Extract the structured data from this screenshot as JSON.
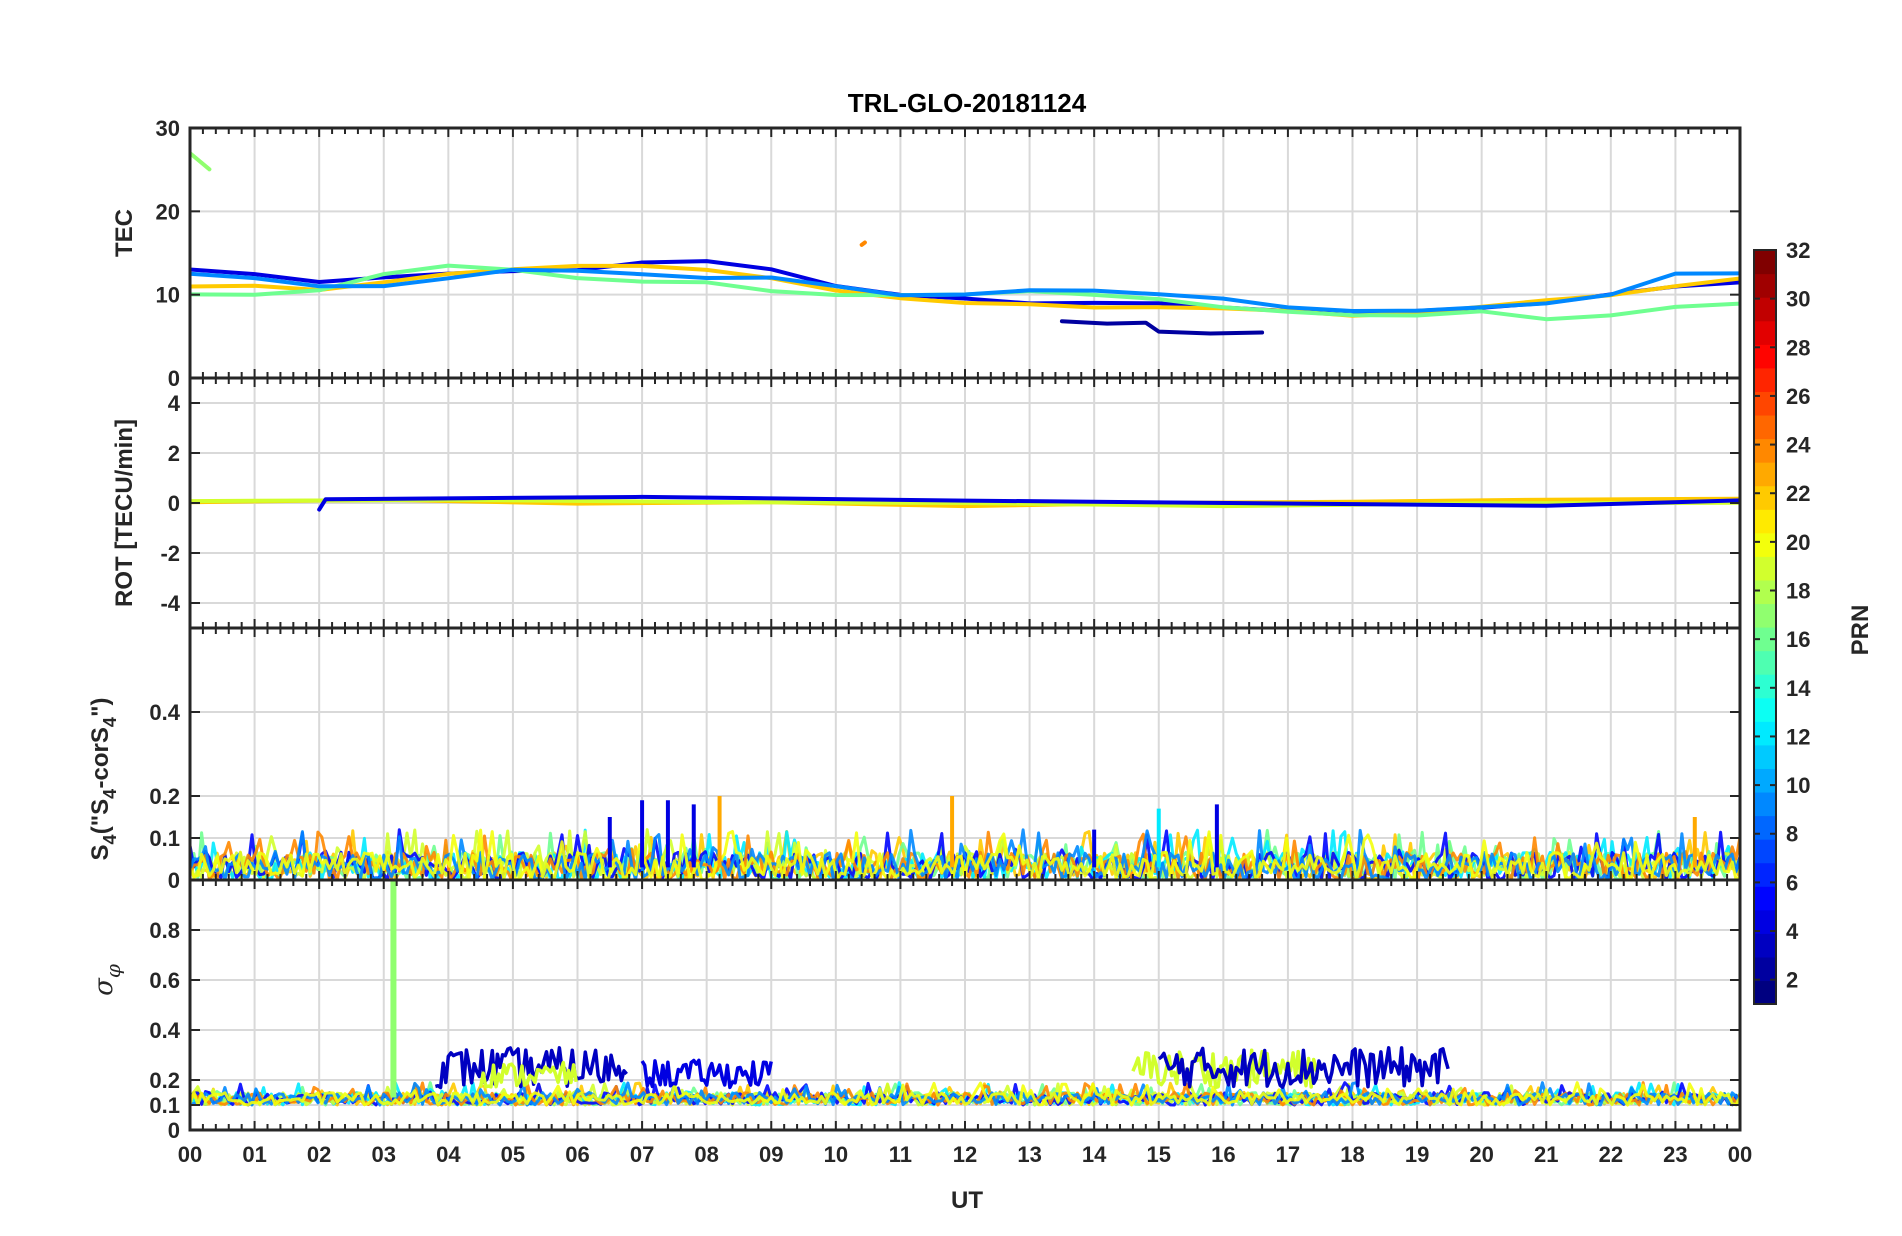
{
  "chart_data": {
    "type": "line",
    "title": "TRL-GLO-20181124",
    "xlabel": "UT",
    "x_range_hours": [
      0,
      24
    ],
    "x_tick_labels": [
      "00",
      "01",
      "02",
      "03",
      "04",
      "05",
      "06",
      "07",
      "08",
      "09",
      "10",
      "11",
      "12",
      "13",
      "14",
      "15",
      "16",
      "17",
      "18",
      "19",
      "20",
      "21",
      "22",
      "23",
      "00"
    ],
    "colorbar": {
      "label": "PRN",
      "range": [
        1,
        32
      ],
      "tick_labels": [
        "2",
        "4",
        "6",
        "8",
        "10",
        "12",
        "14",
        "16",
        "18",
        "20",
        "22",
        "24",
        "26",
        "28",
        "30",
        "32"
      ],
      "colormap": "jet"
    },
    "panels": [
      {
        "id": "tec",
        "ylabel": "TEC",
        "ylim": [
          0,
          30
        ],
        "y_ticks": [
          0,
          10,
          20,
          30
        ],
        "y_tick_labels": [
          "0",
          "10",
          "20",
          "30"
        ],
        "series": [
          {
            "prn": 4,
            "points": [
              [
                0,
                13
              ],
              [
                1,
                12.5
              ],
              [
                2,
                11.5
              ],
              [
                3,
                12
              ],
              [
                4,
                12.5
              ],
              [
                5,
                12.8
              ],
              [
                6,
                13
              ],
              [
                7,
                13.8
              ],
              [
                8,
                14
              ],
              [
                9,
                13
              ],
              [
                10,
                11
              ],
              [
                11,
                10
              ],
              [
                12,
                9.5
              ],
              [
                13,
                9
              ],
              [
                14,
                9
              ],
              [
                15,
                9
              ],
              [
                16,
                8.5
              ],
              [
                17,
                8
              ],
              [
                18,
                7.5
              ],
              [
                19,
                8
              ],
              [
                20,
                8.5
              ],
              [
                21,
                9
              ],
              [
                22,
                10
              ],
              [
                23,
                11
              ],
              [
                24,
                11.5
              ]
            ]
          },
          {
            "prn": 22,
            "points": [
              [
                0,
                11
              ],
              [
                1,
                11
              ],
              [
                2,
                10.5
              ],
              [
                3,
                11.5
              ],
              [
                4,
                12.5
              ],
              [
                5,
                13
              ],
              [
                6,
                13.5
              ],
              [
                7,
                13.5
              ],
              [
                8,
                13
              ],
              [
                9,
                12
              ],
              [
                10,
                10.5
              ],
              [
                11,
                9.5
              ],
              [
                12,
                9
              ],
              [
                13,
                8.8
              ],
              [
                14,
                8.5
              ],
              [
                15,
                8.5
              ],
              [
                16,
                8.3
              ],
              [
                17,
                8
              ],
              [
                18,
                7.5
              ],
              [
                19,
                7.8
              ],
              [
                20,
                8.5
              ],
              [
                21,
                9.3
              ],
              [
                22,
                10
              ],
              [
                23,
                11
              ],
              [
                24,
                12
              ]
            ]
          },
          {
            "prn": 16,
            "points": [
              [
                0,
                10
              ],
              [
                1,
                10
              ],
              [
                2,
                10.5
              ],
              [
                3,
                12.5
              ],
              [
                4,
                13.5
              ],
              [
                5,
                13
              ],
              [
                6,
                12
              ],
              [
                7,
                11.5
              ],
              [
                8,
                11.5
              ],
              [
                9,
                10.5
              ],
              [
                10,
                10
              ],
              [
                11,
                10
              ],
              [
                12,
                10
              ],
              [
                13,
                10.5
              ],
              [
                14,
                10
              ],
              [
                15,
                9.5
              ],
              [
                16,
                8.5
              ],
              [
                17,
                8
              ],
              [
                18,
                7.5
              ],
              [
                19,
                7.5
              ],
              [
                20,
                8
              ],
              [
                21,
                7
              ],
              [
                22,
                7.5
              ],
              [
                23,
                8.5
              ],
              [
                24,
                9
              ]
            ]
          },
          {
            "prn": 9,
            "points": [
              [
                0,
                12.5
              ],
              [
                1,
                12
              ],
              [
                2,
                11
              ],
              [
                3,
                11
              ],
              [
                4,
                12
              ],
              [
                5,
                13
              ],
              [
                6,
                12.8
              ],
              [
                7,
                12.5
              ],
              [
                8,
                12
              ],
              [
                9,
                12
              ],
              [
                10,
                11
              ],
              [
                11,
                10
              ],
              [
                12,
                10
              ],
              [
                13,
                10.5
              ],
              [
                14,
                10.5
              ],
              [
                15,
                10
              ],
              [
                16,
                9.5
              ],
              [
                17,
                8.5
              ],
              [
                18,
                8
              ],
              [
                19,
                8
              ],
              [
                20,
                8.5
              ],
              [
                21,
                9
              ],
              [
                22,
                10
              ],
              [
                23,
                12.5
              ],
              [
                24,
                12.5
              ]
            ]
          },
          {
            "prn": 2,
            "points": [
              [
                13.5,
                6.8
              ],
              [
                14.2,
                6.5
              ],
              [
                14.8,
                6.7
              ],
              [
                15,
                5.5
              ],
              [
                15.8,
                5.4
              ],
              [
                16.6,
                5.5
              ]
            ]
          },
          {
            "prn": 17,
            "points": [
              [
                0,
                27
              ],
              [
                0.3,
                25
              ]
            ]
          },
          {
            "prn": 24,
            "points": [
              [
                10.4,
                16
              ],
              [
                10.45,
                16.2
              ]
            ]
          }
        ]
      },
      {
        "id": "rot",
        "ylabel": "ROT [TECU/min]",
        "ylim": [
          -5,
          5
        ],
        "y_ticks": [
          -4,
          -2,
          0,
          2,
          4
        ],
        "y_tick_labels": [
          "-4",
          "-2",
          "0",
          "2",
          "4"
        ],
        "series": [
          {
            "prn": 22,
            "points": [
              [
                0,
                0.1
              ],
              [
                3,
                0.05
              ],
              [
                6,
                0
              ],
              [
                9,
                0.05
              ],
              [
                12,
                0
              ],
              [
                15,
                0.05
              ],
              [
                18,
                0
              ],
              [
                21,
                0.05
              ],
              [
                24,
                0.1
              ]
            ]
          },
          {
            "prn": 19,
            "points": [
              [
                0,
                -0.05
              ],
              [
                4,
                0.1
              ],
              [
                8,
                -0.05
              ],
              [
                12,
                0.05
              ],
              [
                16,
                0
              ],
              [
                20,
                0.05
              ],
              [
                24,
                0
              ]
            ]
          },
          {
            "prn": 4,
            "points": [
              [
                2,
                -0.3
              ],
              [
                2.1,
                0.1
              ],
              [
                7,
                0.2
              ],
              [
                12,
                0.1
              ],
              [
                21,
                -0.15
              ],
              [
                24,
                0
              ]
            ]
          }
        ]
      },
      {
        "id": "s4",
        "ylabel": "S4 (\"S4-corS4\")",
        "ylabel_parts": {
          "base": "S",
          "sub": "4",
          "mid": " (\"S",
          "sub2": "4",
          "end": "-corS",
          "sub3": "4",
          "close": "\")"
        },
        "ylim": [
          0,
          0.6
        ],
        "y_ticks": [
          0,
          0.1,
          0.2,
          0.4
        ],
        "y_tick_labels": [
          "0",
          "0.1",
          "0.2",
          "0.4"
        ],
        "baseline_range": [
          0.0,
          0.12
        ],
        "spikes": [
          {
            "prn": 4,
            "t": 6.5,
            "v": 0.15
          },
          {
            "prn": 4,
            "t": 7.0,
            "v": 0.19
          },
          {
            "prn": 4,
            "t": 7.4,
            "v": 0.19
          },
          {
            "prn": 4,
            "t": 7.8,
            "v": 0.18
          },
          {
            "prn": 23,
            "t": 8.2,
            "v": 0.2
          },
          {
            "prn": 23,
            "t": 11.8,
            "v": 0.2
          },
          {
            "prn": 4,
            "t": 14.0,
            "v": 0.12
          },
          {
            "prn": 12,
            "t": 15.0,
            "v": 0.17
          },
          {
            "prn": 4,
            "t": 15.9,
            "v": 0.18
          },
          {
            "prn": 23,
            "t": 23.3,
            "v": 0.15
          }
        ]
      },
      {
        "id": "sigma",
        "ylabel": "σφ",
        "ylabel_parts": {
          "base": "σ",
          "sub": "φ"
        },
        "ylim": [
          0,
          1
        ],
        "y_ticks": [
          0,
          0.1,
          0.2,
          0.4,
          0.6,
          0.8
        ],
        "y_tick_labels": [
          "0",
          "0.1",
          "0.2",
          "0.4",
          "0.6",
          "0.8"
        ],
        "baseline_range": [
          0.1,
          0.19
        ],
        "spikes": [
          {
            "prn": 17,
            "t": 3.15,
            "v": 1.0
          }
        ],
        "activity": [
          {
            "prn": 3,
            "from": 3.8,
            "to": 6.8,
            "max": 0.33
          },
          {
            "prn": 19,
            "from": 4.5,
            "to": 6.0,
            "max": 0.27
          },
          {
            "prn": 4,
            "from": 7.0,
            "to": 9.0,
            "max": 0.28
          },
          {
            "prn": 19,
            "from": 14.6,
            "to": 17.5,
            "max": 0.32
          },
          {
            "prn": 3,
            "from": 15.0,
            "to": 19.5,
            "max": 0.33
          }
        ]
      }
    ]
  }
}
